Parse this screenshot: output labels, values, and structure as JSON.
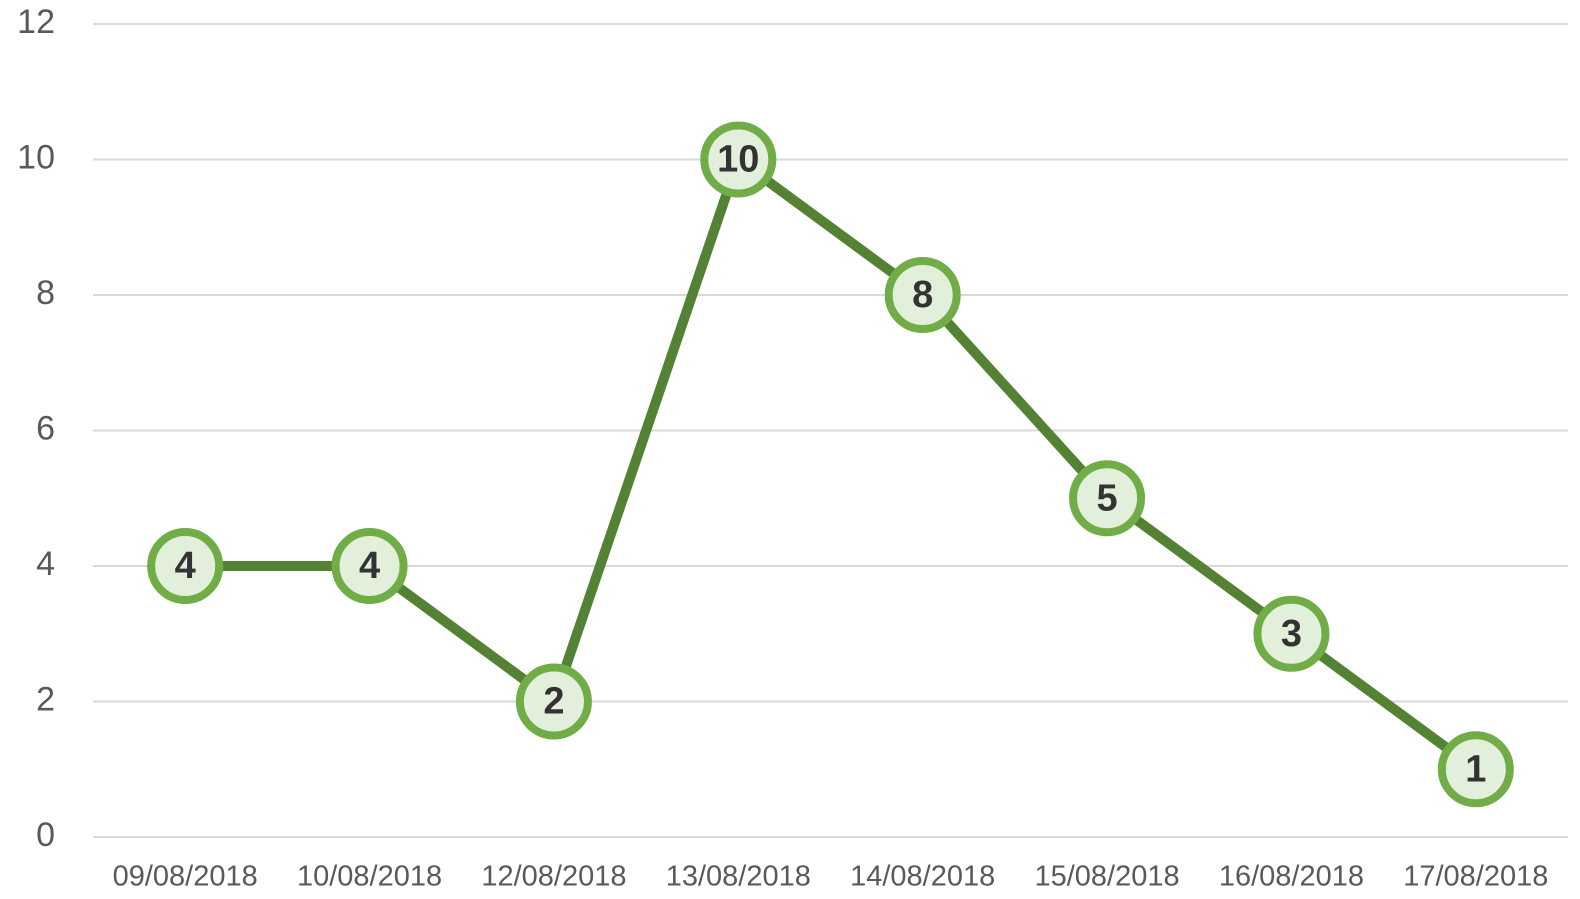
{
  "chart_data": {
    "type": "line",
    "categories": [
      "09/08/2018",
      "10/08/2018",
      "12/08/2018",
      "13/08/2018",
      "14/08/2018",
      "15/08/2018",
      "16/08/2018",
      "17/08/2018"
    ],
    "values": [
      4,
      4,
      2,
      10,
      8,
      5,
      3,
      1
    ],
    "color": "#548235",
    "marker_color": "#70ad47",
    "marker_fill": "#e2efda",
    "ylim": [
      0,
      12
    ],
    "yticks": [
      0,
      2,
      4,
      6,
      8,
      10,
      12
    ],
    "grid": true
  }
}
